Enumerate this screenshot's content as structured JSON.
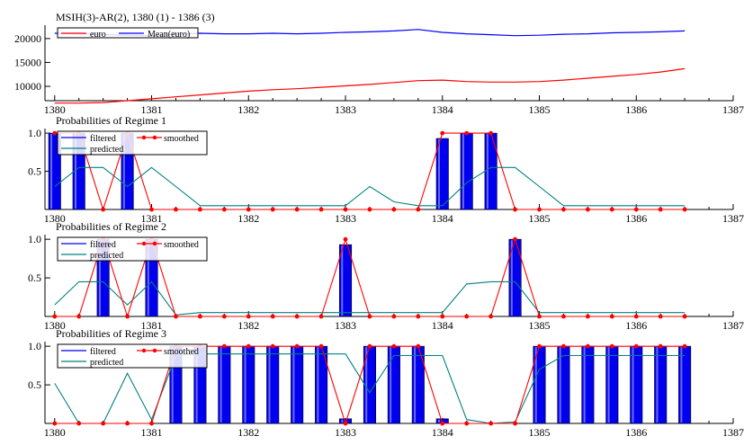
{
  "chart_data": [
    {
      "type": "line",
      "title": "MSIH(3)-AR(2), 1380 (1) - 1386 (3)",
      "x": [
        1380.0,
        1380.25,
        1380.5,
        1380.75,
        1381.0,
        1381.25,
        1381.5,
        1381.75,
        1382.0,
        1382.25,
        1382.5,
        1382.75,
        1383.0,
        1383.25,
        1383.5,
        1383.75,
        1384.0,
        1384.25,
        1384.5,
        1384.75,
        1385.0,
        1385.25,
        1385.5,
        1385.75,
        1386.0,
        1386.25,
        1386.5
      ],
      "xlim": [
        1379.9,
        1387
      ],
      "ylim": [
        7000,
        22800
      ],
      "xticks": [
        1380,
        1381,
        1382,
        1383,
        1384,
        1385,
        1386,
        1387
      ],
      "yticks": [
        10000,
        15000,
        20000
      ],
      "legend_position": "top-left",
      "series": [
        {
          "name": "euro",
          "color": "#ff0000",
          "values": [
            6500,
            6500,
            6600,
            7000,
            7400,
            7800,
            8200,
            8600,
            9000,
            9300,
            9500,
            9800,
            10100,
            10400,
            10800,
            11200,
            11300,
            11000,
            10900,
            10900,
            11000,
            11300,
            11700,
            12100,
            12500,
            13000,
            13700
          ]
        },
        {
          "name": "Mean(euro)",
          "color": "#0000ff",
          "values": [
            21100,
            21000,
            20800,
            20700,
            20600,
            20900,
            21100,
            21000,
            21000,
            21100,
            21000,
            21100,
            21300,
            21400,
            21600,
            21900,
            21300,
            21000,
            20800,
            20600,
            20700,
            20900,
            21000,
            21200,
            21300,
            21400,
            21600
          ]
        }
      ]
    },
    {
      "type": "bar",
      "title": "Probabilities of Regime 1",
      "x": [
        1380.0,
        1380.25,
        1380.5,
        1380.75,
        1381.0,
        1381.25,
        1381.5,
        1381.75,
        1382.0,
        1382.25,
        1382.5,
        1382.75,
        1383.0,
        1383.25,
        1383.5,
        1383.75,
        1384.0,
        1384.25,
        1384.5,
        1384.75,
        1385.0,
        1385.25,
        1385.5,
        1385.75,
        1386.0,
        1386.25,
        1386.5
      ],
      "xlim": [
        1379.9,
        1387
      ],
      "ylim": [
        0,
        1.06
      ],
      "xticks": [
        1380,
        1381,
        1382,
        1383,
        1384,
        1385,
        1386,
        1387
      ],
      "yticks": [
        0.5,
        1.0
      ],
      "legend_position": "top-left",
      "series": [
        {
          "name": "filtered",
          "kind": "bar",
          "color": "#0000ee",
          "values": [
            1,
            1,
            0,
            1,
            0,
            0,
            0,
            0,
            0,
            0,
            0,
            0,
            0,
            0,
            0,
            0,
            0.93,
            1,
            1,
            0,
            0,
            0,
            0,
            0,
            0,
            0,
            0
          ]
        },
        {
          "name": "smoothed",
          "kind": "line-marker",
          "color": "#ff0000",
          "values": [
            1,
            1,
            0,
            1,
            0,
            0,
            0,
            0,
            0,
            0,
            0,
            0,
            0,
            0,
            0,
            0,
            1,
            1,
            1,
            0,
            0,
            0,
            0,
            0,
            0,
            0,
            0
          ]
        },
        {
          "name": "predicted",
          "kind": "line",
          "color": "#008080",
          "values": [
            0.3,
            0.55,
            0.55,
            0.3,
            0.55,
            0.3,
            0.05,
            0.05,
            0.05,
            0.05,
            0.05,
            0.05,
            0.05,
            0.3,
            0.1,
            0.05,
            0.05,
            0.35,
            0.55,
            0.55,
            0.3,
            0.05,
            0.05,
            0.05,
            0.05,
            0.05,
            0.05
          ]
        }
      ]
    },
    {
      "type": "bar",
      "title": "Probabilities of Regime 2",
      "x": [
        1380.0,
        1380.25,
        1380.5,
        1380.75,
        1381.0,
        1381.25,
        1381.5,
        1381.75,
        1382.0,
        1382.25,
        1382.5,
        1382.75,
        1383.0,
        1383.25,
        1383.5,
        1383.75,
        1384.0,
        1384.25,
        1384.5,
        1384.75,
        1385.0,
        1385.25,
        1385.5,
        1385.75,
        1386.0,
        1386.25,
        1386.5
      ],
      "xlim": [
        1379.9,
        1387
      ],
      "ylim": [
        0,
        1.06
      ],
      "xticks": [
        1380,
        1381,
        1382,
        1383,
        1384,
        1385,
        1386,
        1387
      ],
      "yticks": [
        0.5,
        1.0
      ],
      "legend_position": "top-left",
      "series": [
        {
          "name": "filtered",
          "kind": "bar",
          "color": "#0000ee",
          "values": [
            0,
            0,
            1,
            0,
            1,
            0,
            0,
            0,
            0,
            0,
            0,
            0,
            0.93,
            0,
            0,
            0,
            0,
            0,
            0,
            1,
            0,
            0,
            0,
            0,
            0,
            0,
            0
          ]
        },
        {
          "name": "smoothed",
          "kind": "line-marker",
          "color": "#ff0000",
          "values": [
            0,
            0,
            1,
            0,
            1,
            0,
            0,
            0,
            0,
            0,
            0,
            0,
            1,
            0,
            0,
            0,
            0,
            0,
            0,
            1,
            0,
            0,
            0,
            0,
            0,
            0,
            0
          ]
        },
        {
          "name": "predicted",
          "kind": "line",
          "color": "#008080",
          "values": [
            0.15,
            0.45,
            0.45,
            0.15,
            0.45,
            0.02,
            0.05,
            0.05,
            0.05,
            0.05,
            0.05,
            0.05,
            0.05,
            0.05,
            0.05,
            0.05,
            0.05,
            0.42,
            0.45,
            0.45,
            0.05,
            0.05,
            0.05,
            0.05,
            0.05,
            0.05,
            0.05
          ]
        }
      ]
    },
    {
      "type": "bar",
      "title": "Probabilities of Regime 3",
      "x": [
        1380.0,
        1380.25,
        1380.5,
        1380.75,
        1381.0,
        1381.25,
        1381.5,
        1381.75,
        1382.0,
        1382.25,
        1382.5,
        1382.75,
        1383.0,
        1383.25,
        1383.5,
        1383.75,
        1384.0,
        1384.25,
        1384.5,
        1384.75,
        1385.0,
        1385.25,
        1385.5,
        1385.75,
        1386.0,
        1386.25,
        1386.5
      ],
      "xlim": [
        1379.9,
        1387
      ],
      "ylim": [
        0,
        1.06
      ],
      "xticks": [
        1380,
        1381,
        1382,
        1383,
        1384,
        1385,
        1386,
        1387
      ],
      "yticks": [
        0.5,
        1.0
      ],
      "legend_position": "top-left",
      "series": [
        {
          "name": "filtered",
          "kind": "bar",
          "color": "#0000ee",
          "values": [
            0,
            0,
            0,
            0,
            0,
            1,
            1,
            1,
            1,
            1,
            1,
            1,
            0.06,
            1,
            1,
            1,
            0.06,
            0,
            0,
            0,
            1,
            1,
            1,
            1,
            1,
            1,
            1
          ]
        },
        {
          "name": "smoothed",
          "kind": "line-marker",
          "color": "#ff0000",
          "values": [
            0,
            0,
            0,
            0,
            0,
            1,
            1,
            1,
            1,
            1,
            1,
            1,
            0,
            1,
            1,
            1,
            0,
            0,
            0,
            0,
            1,
            1,
            1,
            1,
            1,
            1,
            1
          ]
        },
        {
          "name": "predicted",
          "kind": "line",
          "color": "#008080",
          "values": [
            0.52,
            0,
            0,
            0.65,
            0.05,
            0.88,
            0.9,
            0.9,
            0.9,
            0.9,
            0.9,
            0.9,
            0.9,
            0.4,
            0.88,
            0.88,
            0.88,
            0.05,
            0,
            0.02,
            0.7,
            0.88,
            0.88,
            0.88,
            0.88,
            0.88,
            0.88
          ]
        }
      ]
    }
  ]
}
